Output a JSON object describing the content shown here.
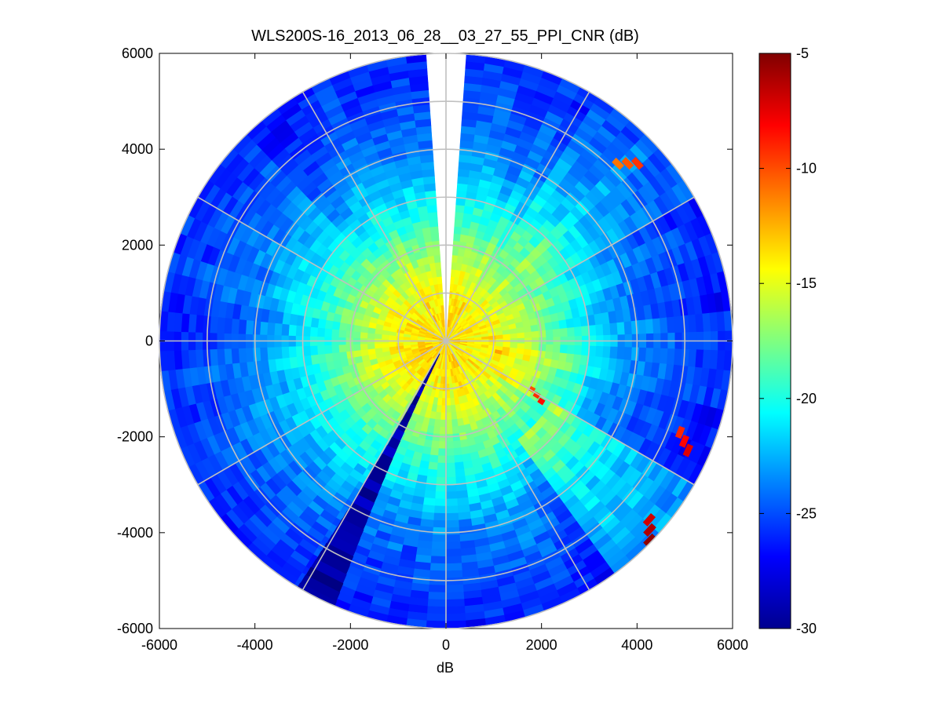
{
  "chart_data": {
    "type": "heatmap",
    "subtype": "polar-ppi",
    "title": "WLS200S-16_2013_06_28__03_27_55_PPI_CNR (dB)",
    "xlabel": "dB",
    "ylabel": "",
    "xlim": [
      -6000,
      6000
    ],
    "ylim": [
      -6000,
      6000
    ],
    "xticks": [
      "-6000",
      "-4000",
      "-2000",
      "0",
      "2000",
      "4000",
      "6000"
    ],
    "yticks": [
      "-6000",
      "-4000",
      "-2000",
      "0",
      "2000",
      "4000",
      "6000"
    ],
    "max_range": 6000,
    "range_rings": [
      1000,
      2000,
      3000,
      4000,
      5000,
      6000
    ],
    "spokes_deg": [
      0,
      30,
      60,
      90,
      120,
      150,
      180,
      210,
      240,
      270,
      300,
      330
    ],
    "colormap": "jet",
    "colorbar": {
      "min": -30,
      "max": -5,
      "ticks": [
        "-5",
        "-10",
        "-15",
        "-20",
        "-25",
        "-30"
      ]
    },
    "cnr_profile": {
      "range_m": [
        0,
        500,
        1000,
        1500,
        2000,
        2500,
        3000,
        3500,
        4000,
        4500,
        5000,
        5500,
        6000
      ],
      "cnr_db": [
        -13.5,
        -13.8,
        -14.5,
        -15.8,
        -17.5,
        -19.5,
        -21.0,
        -22.5,
        -23.8,
        -24.5,
        -25.2,
        -25.8,
        -26.2
      ]
    },
    "gap": {
      "from_azimuth_deg": 357,
      "to_azimuth_deg": 4
    },
    "features": [
      {
        "azimuth_deg": 207,
        "cnr_db": -29,
        "label": "low-CNR beam"
      },
      {
        "azimuth_deg": 112,
        "range_m": 5400,
        "cnr_db": -9,
        "label": "hard target"
      },
      {
        "azimuth_deg": 132,
        "range_m": 5800,
        "cnr_db": -7,
        "label": "hard target"
      },
      {
        "azimuth_deg": 45,
        "range_m": 5300,
        "cnr_db": -11,
        "label": "hard target"
      },
      {
        "azimuth_deg": 120,
        "range_m": 2200,
        "cnr_db": -10,
        "label": "hard target"
      }
    ],
    "grid": true,
    "legend": "none"
  }
}
